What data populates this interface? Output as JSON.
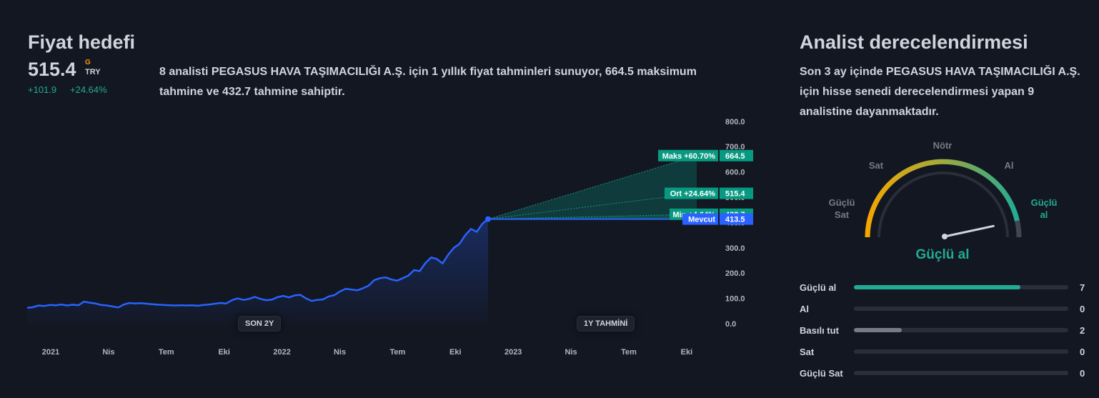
{
  "price_target": {
    "title": "Fiyat hedefi",
    "value": "515.4",
    "g_mark": "G",
    "currency": "TRY",
    "change_abs": "+101.9",
    "change_pct": "+24.64%",
    "description": "8 analisti PEGASUS HAVA TAŞIMACILIĞI A.Ş. için 1 yıllık fiyat tahminleri sunuyor, 664.5 maksimum tahmine ve 432.7 tahmine sahiptir.",
    "period_left": "SON 2Y",
    "period_right": "1Y TAHMİNİ"
  },
  "analyst": {
    "title": "Analist derecelendirmesi",
    "description": "Son 3 ay içinde PEGASUS HAVA TAŞIMACILIĞI A.Ş. için hisse senedi derecelendirmesi yapan 9 analistine dayanmaktadır.",
    "gauge": {
      "labels": [
        "Güçlü Sat",
        "Sat",
        "Nötr",
        "Al",
        "Güçlü al"
      ],
      "result": "Güçlü al",
      "needle_fraction": 0.93
    },
    "ratings": [
      {
        "label": "Güçlü al",
        "count": "7",
        "fraction": 0.778,
        "color": "#22ab94"
      },
      {
        "label": "Al",
        "count": "0",
        "fraction": 0,
        "color": "#22ab94"
      },
      {
        "label": "Basılı tut",
        "count": "2",
        "fraction": 0.222,
        "color": "#787b86"
      },
      {
        "label": "Sat",
        "count": "0",
        "fraction": 0,
        "color": "#787b86"
      },
      {
        "label": "Güçlü Sat",
        "count": "0",
        "fraction": 0,
        "color": "#787b86"
      }
    ]
  },
  "colors": {
    "line": "#2962ff",
    "green": "#089981",
    "background": "#131722"
  },
  "chart_data": {
    "type": "line",
    "x_tick_labels": [
      "2021",
      "Nis",
      "Tem",
      "Eki",
      "2022",
      "Nis",
      "Tem",
      "Eki",
      "2023",
      "Nis",
      "Tem",
      "Eki"
    ],
    "y_tick_labels": [
      "0.0",
      "100.0",
      "200.0",
      "300.0",
      "400.0",
      "500.0",
      "600.0",
      "700.0",
      "800.0"
    ],
    "ylim": [
      0,
      800
    ],
    "series": [
      {
        "values": [
          63,
          65,
          72,
          70,
          74,
          73,
          76,
          72,
          75,
          73,
          87,
          83,
          80,
          74,
          72,
          68,
          64,
          76,
          82,
          80,
          81,
          79,
          77,
          75,
          74,
          73,
          72,
          73,
          72,
          73,
          71,
          74,
          76,
          79,
          82,
          80,
          93,
          100,
          94,
          98,
          106,
          98,
          93,
          95,
          105,
          110,
          104,
          112,
          114,
          100,
          90,
          94,
          96,
          108,
          113,
          128,
          138,
          135,
          132,
          140,
          150,
          172,
          180,
          183,
          175,
          170,
          180,
          190,
          212,
          208,
          240,
          262,
          256,
          238,
          273,
          300,
          316,
          350,
          375,
          363,
          395,
          413.5
        ]
      }
    ],
    "forecast": {
      "current": {
        "label": "Mevcut",
        "value": 413.5
      },
      "max": {
        "label": "Maks +60.70%",
        "value": 664.5
      },
      "avg": {
        "label": "Ort +24.64%",
        "value": 515.4
      },
      "min": {
        "label": "Min +4.64%",
        "value": 432.7
      }
    }
  }
}
